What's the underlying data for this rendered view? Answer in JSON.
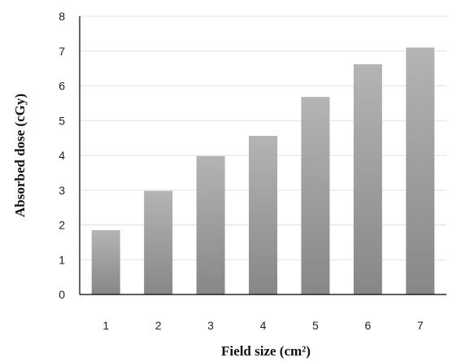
{
  "chart_data": {
    "type": "bar",
    "title": "",
    "xlabel": "Field size (cm²)",
    "ylabel": "Absorbed dose  (cGy)",
    "categories": [
      "1",
      "2",
      "3",
      "4",
      "5",
      "6",
      "7"
    ],
    "values": [
      1.85,
      2.98,
      3.98,
      4.56,
      5.68,
      6.62,
      7.1
    ],
    "ylim": [
      0,
      8
    ],
    "yticks": [
      "0",
      "1",
      "2",
      "3",
      "4",
      "5",
      "6",
      "7",
      "8"
    ],
    "grid": true,
    "legend": "none",
    "bar_color_top": "#b4b4b4",
    "bar_color_bottom": "#878787",
    "gridline_color": "#e2e2e2",
    "axis_color": "#000000"
  }
}
